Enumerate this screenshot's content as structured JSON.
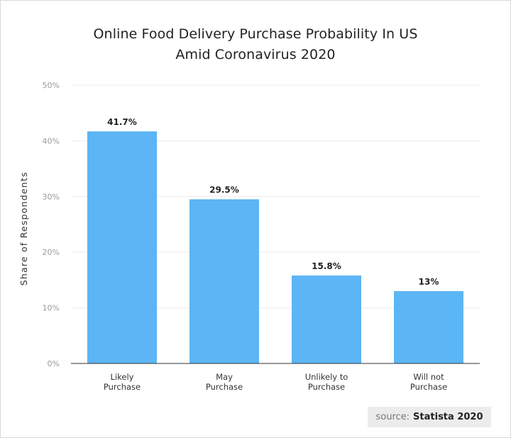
{
  "chart_data": {
    "type": "bar",
    "title_lines": [
      "Online Food Delivery Purchase Probability In US",
      "Amid Coronavirus 2020"
    ],
    "categories": [
      [
        "Likely",
        "Purchase"
      ],
      [
        "May",
        "Purchase"
      ],
      [
        "Unlikely to",
        "Purchase"
      ],
      [
        "Will not",
        "Purchase"
      ]
    ],
    "values": [
      41.7,
      29.5,
      15.8,
      13
    ],
    "data_labels": [
      "41.7%",
      "29.5%",
      "15.8%",
      "13%"
    ],
    "xlabel": "",
    "ylabel": "Share of Respondents",
    "ylim": [
      0,
      50
    ],
    "yticks": [
      0,
      10,
      20,
      30,
      40,
      50
    ],
    "ytick_labels": [
      "0%",
      "10%",
      "20%",
      "30%",
      "40%",
      "50%"
    ],
    "grid": true,
    "bar_color": "#5cb5f5"
  },
  "source": {
    "prefix": "source:",
    "name": "Statista 2020"
  }
}
